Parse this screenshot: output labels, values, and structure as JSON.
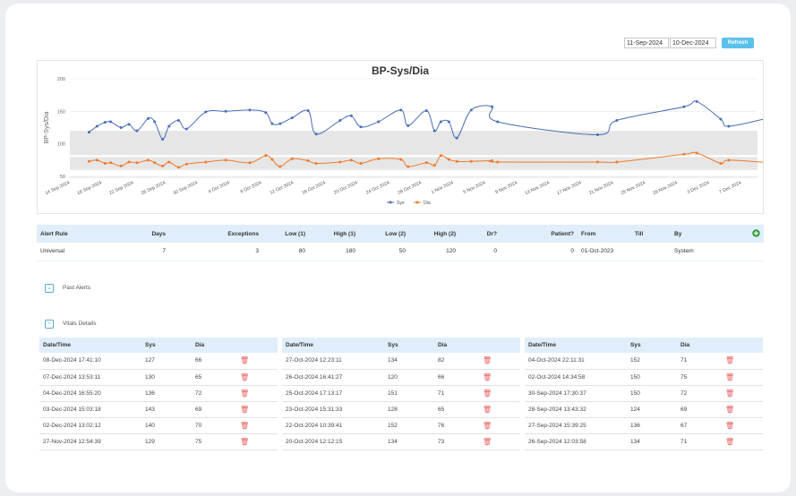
{
  "filters": {
    "from_date": "11-Sep-2024",
    "to_date": "10-Dec-2024",
    "refresh_label": "Refresh"
  },
  "chart_data": {
    "type": "line",
    "title": "BP-Sys/Dia",
    "xlabel": "",
    "ylabel": "BP-Sys/Dia",
    "ylim": [
      50,
      200
    ],
    "yticks": [
      "200",
      "150",
      "100",
      "50"
    ],
    "x_tick_labels": [
      "14 Sep 2024",
      "18 Sep 2024",
      "22 Sep 2024",
      "26 Sep 2024",
      "30 Sep 2024",
      "4 Oct 2024",
      "8 Oct 2024",
      "12 Oct 2024",
      "16 Oct 2024",
      "20 Oct 2024",
      "24 Oct 2024",
      "28 Oct 2024",
      "1 Nov 2024",
      "5 Nov 2024",
      "9 Nov 2024",
      "13 Nov 2024",
      "17 Nov 2024",
      "21 Nov 2024",
      "25 Nov 2024",
      "29 Nov 2024",
      "3 Dec 2024",
      "7 Dec 2024"
    ],
    "x_start": "2024-09-14",
    "x_end": "2024-12-09",
    "bands": [
      {
        "from": 80,
        "to": 120
      },
      {
        "from": 60,
        "to": 80
      }
    ],
    "legend": "bottom-center",
    "series": [
      {
        "name": "Sys",
        "color": "#4a6fb5",
        "points": [
          [
            2.4,
            118
          ],
          [
            3.4,
            127
          ],
          [
            4.4,
            133
          ],
          [
            5.1,
            134
          ],
          [
            6.4,
            125
          ],
          [
            7.4,
            130
          ],
          [
            8.4,
            120
          ],
          [
            9.8,
            139
          ],
          [
            10.6,
            134
          ],
          [
            11.6,
            107
          ],
          [
            12.4,
            127
          ],
          [
            13.6,
            136
          ],
          [
            14.6,
            123
          ],
          [
            17.0,
            149
          ],
          [
            19.5,
            150
          ],
          [
            22.5,
            152
          ],
          [
            24.5,
            148
          ],
          [
            25.3,
            131
          ],
          [
            26.3,
            131
          ],
          [
            27.8,
            140
          ],
          [
            29.8,
            151
          ],
          [
            30.8,
            115
          ],
          [
            33.8,
            136
          ],
          [
            35.2,
            143
          ],
          [
            36.4,
            126
          ],
          [
            38.6,
            134
          ],
          [
            41.4,
            152
          ],
          [
            42.3,
            128
          ],
          [
            44.6,
            151
          ],
          [
            45.6,
            120
          ],
          [
            46.4,
            134
          ],
          [
            47.4,
            134
          ],
          [
            48.4,
            109
          ],
          [
            50.2,
            152
          ],
          [
            52.8,
            157
          ],
          [
            53.5,
            134
          ],
          [
            66.0,
            114
          ],
          [
            68.4,
            136
          ],
          [
            76.8,
            157
          ],
          [
            78.4,
            165
          ],
          [
            81.4,
            138
          ],
          [
            82.4,
            127
          ],
          [
            87.5,
            140
          ],
          [
            88.8,
            143
          ],
          [
            90.4,
            136
          ],
          [
            92.8,
            130
          ],
          [
            94.5,
            126
          ]
        ]
      },
      {
        "name": "Dia",
        "color": "#ef7a2a",
        "points": [
          [
            2.4,
            73
          ],
          [
            3.4,
            75
          ],
          [
            4.4,
            70
          ],
          [
            5.1,
            71
          ],
          [
            6.4,
            66
          ],
          [
            7.4,
            72
          ],
          [
            8.4,
            71
          ],
          [
            9.8,
            75
          ],
          [
            10.6,
            71
          ],
          [
            11.6,
            66
          ],
          [
            12.4,
            72
          ],
          [
            13.6,
            64
          ],
          [
            14.6,
            69
          ],
          [
            17.0,
            72
          ],
          [
            19.5,
            75
          ],
          [
            22.5,
            71
          ],
          [
            24.5,
            82
          ],
          [
            25.3,
            76
          ],
          [
            26.3,
            65
          ],
          [
            27.8,
            77
          ],
          [
            29.8,
            74
          ],
          [
            30.8,
            70
          ],
          [
            33.8,
            72
          ],
          [
            35.2,
            75
          ],
          [
            36.4,
            70
          ],
          [
            38.6,
            77
          ],
          [
            41.4,
            76
          ],
          [
            42.3,
            65
          ],
          [
            44.6,
            71
          ],
          [
            45.6,
            67
          ],
          [
            46.4,
            82
          ],
          [
            47.4,
            76
          ],
          [
            48.4,
            73
          ],
          [
            50.2,
            73
          ],
          [
            52.8,
            74
          ],
          [
            53.5,
            72
          ],
          [
            66.0,
            72
          ],
          [
            68.4,
            72
          ],
          [
            76.8,
            84
          ],
          [
            78.4,
            86
          ],
          [
            81.4,
            70
          ],
          [
            82.4,
            75
          ],
          [
            87.5,
            71
          ],
          [
            88.8,
            70
          ],
          [
            90.4,
            72
          ],
          [
            92.8,
            66
          ],
          [
            94.5,
            66
          ]
        ]
      }
    ]
  },
  "alert_rules": {
    "headers": [
      "Alert Rule",
      "Days",
      "Exceptions",
      "Low (1)",
      "High (1)",
      "Low (2)",
      "High (2)",
      "Dr?",
      "Patient?",
      "From",
      "Till",
      "By"
    ],
    "row": [
      "Universal",
      "7",
      "3",
      "80",
      "180",
      "50",
      "120",
      "0",
      "0",
      "01-Oct-2023",
      "",
      "System"
    ]
  },
  "past_alerts": {
    "label": "Past Alerts"
  },
  "vitals_details": {
    "label": "Vitals Details",
    "headers": [
      "Date/Time",
      "Sys",
      "Dia"
    ],
    "columns": [
      [
        {
          "dt": "08-Dec-2024 17:41:10",
          "sys": "127",
          "dia": "66"
        },
        {
          "dt": "07-Dec-2024 13:53:11",
          "sys": "130",
          "dia": "65"
        },
        {
          "dt": "04-Dec-2024 16:55:20",
          "sys": "136",
          "dia": "72"
        },
        {
          "dt": "03-Dec-2024 15:03:18",
          "sys": "143",
          "dia": "69"
        },
        {
          "dt": "02-Dec-2024 13:02:12",
          "sys": "140",
          "dia": "70"
        },
        {
          "dt": "27-Nov-2024 12:54:39",
          "sys": "129",
          "dia": "75"
        }
      ],
      [
        {
          "dt": "27-Oct-2024 12:23:11",
          "sys": "134",
          "dia": "82"
        },
        {
          "dt": "26-Oct-2024 16:41:27",
          "sys": "120",
          "dia": "66"
        },
        {
          "dt": "25-Oct-2024 17:13:17",
          "sys": "151",
          "dia": "71"
        },
        {
          "dt": "23-Oct-2024 15:31:33",
          "sys": "128",
          "dia": "65"
        },
        {
          "dt": "22-Oct-2024 10:39:41",
          "sys": "152",
          "dia": "76"
        },
        {
          "dt": "20-Oct-2024 12:12:15",
          "sys": "134",
          "dia": "73"
        }
      ],
      [
        {
          "dt": "04-Oct-2024 22:11:31",
          "sys": "152",
          "dia": "71"
        },
        {
          "dt": "02-Oct-2024 14:34:58",
          "sys": "150",
          "dia": "75"
        },
        {
          "dt": "30-Sep-2024 17:30:37",
          "sys": "150",
          "dia": "72"
        },
        {
          "dt": "28-Sep-2024 13:43:32",
          "sys": "124",
          "dia": "69"
        },
        {
          "dt": "27-Sep-2024 15:39:25",
          "sys": "136",
          "dia": "67"
        },
        {
          "dt": "26-Sep-2024 12:03:58",
          "sys": "134",
          "dia": "71"
        }
      ]
    ]
  }
}
